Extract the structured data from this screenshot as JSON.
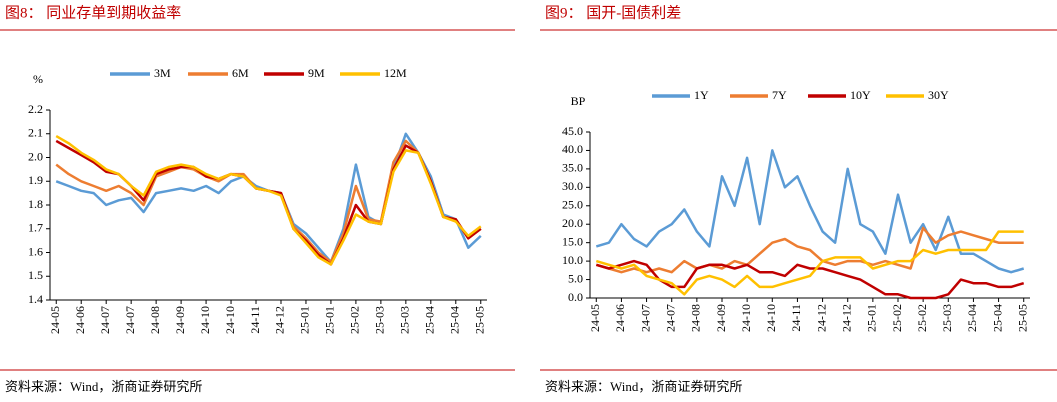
{
  "chart_data": [
    {
      "type": "line",
      "title": "图8：  同业存单到期收益率",
      "ylabel": "%",
      "source": "资料来源：Wind，浙商证券研究所",
      "categories": [
        "24-05",
        null,
        "24-06",
        null,
        "24-07",
        null,
        "24-07",
        null,
        "24-08",
        null,
        "24-09",
        null,
        "24-10",
        null,
        "24-10",
        null,
        "24-11",
        null,
        "24-12",
        null,
        "25-01",
        null,
        "25-01",
        null,
        "25-02",
        null,
        "25-03",
        null,
        "25-03",
        null,
        "25-04",
        null,
        "25-04",
        null,
        "25-05"
      ],
      "ylim": [
        1.4,
        2.2
      ],
      "yticks": [
        1.4,
        1.5,
        1.6,
        1.7,
        1.8,
        1.9,
        {
          "value": 2,
          "label": "2.0"
        },
        2.1,
        2.2
      ],
      "series": [
        {
          "name": "3M",
          "color": "#5b9bd5",
          "values": [
            1.9,
            1.88,
            1.86,
            1.85,
            1.8,
            1.82,
            1.83,
            1.77,
            1.85,
            1.86,
            1.87,
            1.86,
            1.88,
            1.85,
            1.9,
            1.92,
            1.88,
            1.86,
            1.85,
            1.72,
            1.68,
            1.62,
            1.56,
            1.7,
            1.97,
            1.75,
            1.72,
            1.95,
            2.1,
            2.02,
            1.92,
            1.76,
            1.74,
            1.62,
            1.67
          ]
        },
        {
          "name": "6M",
          "color": "#ed7d31",
          "values": [
            1.97,
            1.93,
            1.9,
            1.88,
            1.86,
            1.88,
            1.85,
            1.8,
            1.92,
            1.94,
            1.96,
            1.95,
            1.92,
            1.9,
            1.93,
            1.93,
            1.87,
            1.86,
            1.85,
            1.71,
            1.66,
            1.6,
            1.56,
            1.68,
            1.88,
            1.74,
            1.73,
            1.98,
            2.07,
            2.02,
            1.9,
            1.75,
            1.74,
            1.66,
            1.7
          ]
        },
        {
          "name": "9M",
          "color": "#c00000",
          "values": [
            2.07,
            2.04,
            2.01,
            1.98,
            1.94,
            1.93,
            1.88,
            1.82,
            1.93,
            1.95,
            1.96,
            1.96,
            1.92,
            1.91,
            1.93,
            1.92,
            1.87,
            1.86,
            1.85,
            1.7,
            1.65,
            1.59,
            1.55,
            1.66,
            1.8,
            1.73,
            1.72,
            1.95,
            2.05,
            2.02,
            1.9,
            1.75,
            1.74,
            1.66,
            1.7
          ]
        },
        {
          "name": "12M",
          "color": "#ffc000",
          "values": [
            2.09,
            2.06,
            2.02,
            1.99,
            1.95,
            1.93,
            1.88,
            1.84,
            1.94,
            1.96,
            1.97,
            1.96,
            1.93,
            1.91,
            1.93,
            1.92,
            1.87,
            1.86,
            1.84,
            1.7,
            1.64,
            1.58,
            1.55,
            1.65,
            1.76,
            1.73,
            1.72,
            1.94,
            2.03,
            2.02,
            1.89,
            1.75,
            1.73,
            1.67,
            1.71
          ]
        }
      ]
    },
    {
      "type": "line",
      "title": "图9：  国开-国债利差",
      "ylabel": "BP",
      "source": "资料来源：Wind，浙商证券研究所",
      "categories": [
        "24-05",
        null,
        "24-06",
        null,
        "24-07",
        null,
        "24-07",
        null,
        "24-08",
        null,
        "24-09",
        null,
        "24-10",
        null,
        "24-10",
        null,
        "24-11",
        null,
        "24-12",
        null,
        "24-12",
        null,
        "25-01",
        null,
        "25-02",
        null,
        "25-02",
        null,
        "25-03",
        null,
        "25-04",
        null,
        "25-04",
        null,
        "25-05"
      ],
      "ylim": [
        0,
        45
      ],
      "yticks": [
        {
          "value": 0,
          "label": "0.0"
        },
        {
          "value": 5,
          "label": "5.0"
        },
        {
          "value": 10,
          "label": "10.0"
        },
        {
          "value": 15,
          "label": "15.0"
        },
        {
          "value": 20,
          "label": "20.0"
        },
        {
          "value": 25,
          "label": "25.0"
        },
        {
          "value": 30,
          "label": "30.0"
        },
        {
          "value": 35,
          "label": "35.0"
        },
        {
          "value": 40,
          "label": "40.0"
        },
        {
          "value": 45,
          "label": "45.0"
        }
      ],
      "series": [
        {
          "name": "1Y",
          "color": "#5b9bd5",
          "values": [
            14,
            15,
            20,
            16,
            14,
            18,
            20,
            24,
            18,
            14,
            33,
            25,
            38,
            20,
            40,
            30,
            33,
            25,
            18,
            15,
            35,
            20,
            18,
            12,
            28,
            15,
            20,
            13,
            22,
            12,
            12,
            10,
            8,
            7,
            8
          ]
        },
        {
          "name": "7Y",
          "color": "#ed7d31",
          "values": [
            9,
            8,
            7,
            8,
            7,
            8,
            7,
            10,
            8,
            9,
            8,
            10,
            9,
            12,
            15,
            16,
            14,
            13,
            10,
            9,
            10,
            10,
            9,
            10,
            9,
            8,
            19,
            15,
            17,
            18,
            17,
            16,
            15,
            15,
            15
          ]
        },
        {
          "name": "10Y",
          "color": "#c00000",
          "values": [
            9,
            8,
            9,
            10,
            9,
            5,
            3,
            3,
            8,
            9,
            9,
            8,
            9,
            7,
            7,
            6,
            9,
            8,
            8,
            7,
            6,
            5,
            3,
            1,
            1,
            0,
            0,
            0,
            1,
            5,
            4,
            4,
            3,
            3,
            4
          ]
        },
        {
          "name": "30Y",
          "color": "#ffc000",
          "values": [
            10,
            9,
            8,
            9,
            6,
            5,
            4,
            1,
            5,
            6,
            5,
            3,
            6,
            3,
            3,
            4,
            5,
            6,
            10,
            11,
            11,
            11,
            8,
            9,
            10,
            10,
            13,
            12,
            13,
            13,
            13,
            13,
            18,
            18,
            18
          ]
        }
      ]
    }
  ]
}
